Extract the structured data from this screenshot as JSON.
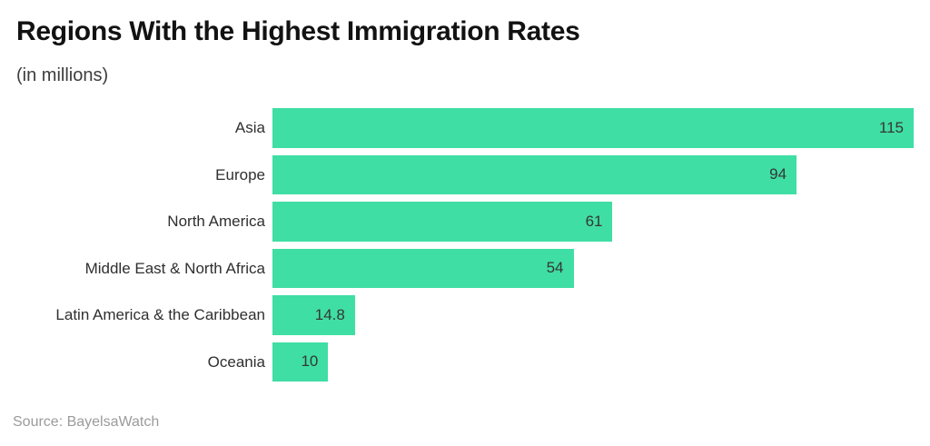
{
  "header": {
    "title": "Regions With the Highest Immigration Rates",
    "subtitle": "(in millions)"
  },
  "footer": {
    "source": "Source: BayelsaWatch"
  },
  "colors": {
    "bar": "#3FDEA4",
    "title_text": "#121212",
    "subtitle_text": "#3d3d3d",
    "category_text": "#2f2f2f",
    "value_text": "#363636",
    "source_text": "#9b9b9b",
    "background": "#ffffff"
  },
  "chart_data": {
    "type": "bar",
    "orientation": "horizontal",
    "title": "Regions With the Highest Immigration Rates",
    "subtitle": "(in millions)",
    "categories": [
      "Asia",
      "Europe",
      "North America",
      "Middle East & North Africa",
      "Latin America & the Caribbean",
      "Oceania"
    ],
    "values": [
      115,
      94,
      61,
      54,
      14.8,
      10
    ],
    "value_labels": [
      "115",
      "94",
      "61",
      "54",
      "14.8",
      "10"
    ],
    "xlabel": "",
    "ylabel": "",
    "xlim": [
      0,
      115
    ],
    "grid": false,
    "legend": false,
    "value_label_position": "inside-end",
    "bar_color": "#3FDEA4",
    "source": "Source: BayelsaWatch"
  }
}
